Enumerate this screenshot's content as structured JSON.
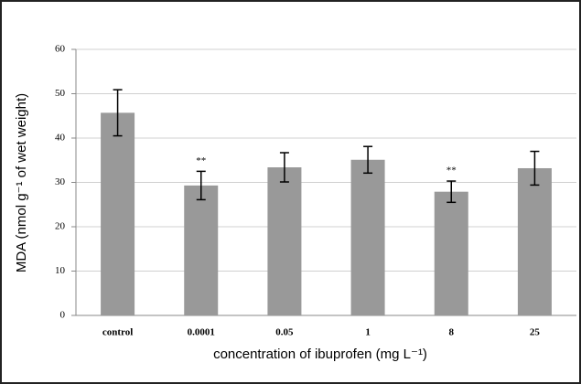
{
  "chart_data": {
    "type": "bar",
    "x_label": "concentration of ibuprofen (mg L⁻¹)",
    "y_label": "MDA (nmol g⁻¹ of wet weight)",
    "categories": [
      "control",
      "0.0001",
      "0.05",
      "1",
      "8",
      "25"
    ],
    "values": [
      45.7,
      29.3,
      33.4,
      35.1,
      27.9,
      33.2
    ],
    "errors": [
      5.2,
      3.2,
      3.3,
      3.0,
      2.4,
      3.8
    ],
    "annotations": [
      null,
      "**",
      null,
      null,
      "**",
      null
    ],
    "color": "#999999",
    "ylim": [
      0,
      60
    ],
    "yticks": [
      0,
      10,
      20,
      30,
      40,
      50,
      60
    ],
    "grid": true
  }
}
